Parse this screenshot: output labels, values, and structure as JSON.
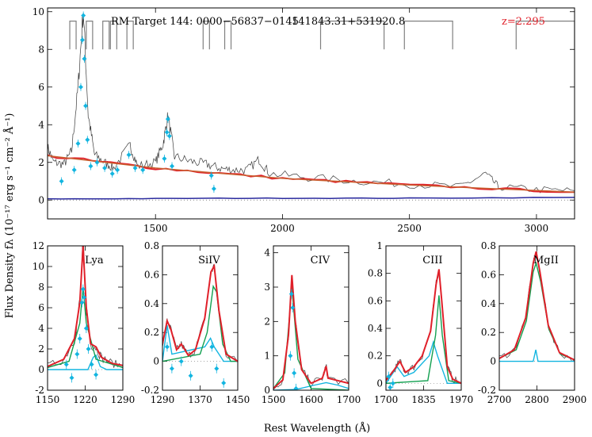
{
  "chart_data": {
    "type": "line",
    "ylabel": "Flux Density fλ (10⁻¹⁷ erg s⁻¹ cm⁻² Å⁻¹)",
    "xlabel": "Rest Wavelength (Å)",
    "colors": {
      "data": "#3a3a3a",
      "fit": "#e0202a",
      "continuum": "#c86030",
      "error": "#2a2a9e",
      "narrow": "#12b5e0",
      "broad": "#12a050",
      "points": "#12b5e0",
      "lines": "#808080"
    },
    "main": {
      "title_left": "RM Target 144: 0000−56837−0145",
      "title_mid": "141843.31+531920.8",
      "redshift": "z=2.295",
      "xlim": [
        1075,
        3150
      ],
      "ylim": [
        -1,
        10.2
      ],
      "xticks": [
        1500,
        2000,
        2500,
        3000
      ],
      "yticks": [
        0,
        2,
        4,
        6,
        8,
        10
      ],
      "line_markers": [
        1175,
        1240,
        1305,
        1335,
        1400,
        1700,
        1785
      ],
      "line_brackets": [
        [
          2150,
          2400
        ],
        [
          2480,
          2670
        ],
        [
          2920,
          3150
        ]
      ],
      "continuum": [
        [
          1075,
          2.35
        ],
        [
          1500,
          1.7
        ],
        [
          2000,
          1.15
        ],
        [
          2500,
          0.8
        ],
        [
          3150,
          0.42
        ]
      ],
      "error": [
        [
          1075,
          0.06
        ],
        [
          1500,
          0.08
        ],
        [
          2000,
          0.1
        ],
        [
          2500,
          0.1
        ],
        [
          3150,
          0.14
        ]
      ],
      "flux": [
        [
          1075,
          2.8
        ],
        [
          1100,
          2.0
        ],
        [
          1140,
          1.9
        ],
        [
          1170,
          2.6
        ],
        [
          1195,
          6.0
        ],
        [
          1216,
          10.1
        ],
        [
          1235,
          4.5
        ],
        [
          1260,
          2.4
        ],
        [
          1300,
          2.0
        ],
        [
          1335,
          1.7
        ],
        [
          1400,
          2.9
        ],
        [
          1430,
          1.8
        ],
        [
          1500,
          2.0
        ],
        [
          1530,
          3.0
        ],
        [
          1549,
          4.5
        ],
        [
          1575,
          2.3
        ],
        [
          1640,
          2.05
        ],
        [
          1700,
          1.9
        ],
        [
          1750,
          1.7
        ],
        [
          1800,
          1.6
        ],
        [
          1860,
          1.6
        ],
        [
          1908,
          2.15
        ],
        [
          1950,
          1.4
        ],
        [
          2100,
          1.2
        ],
        [
          2300,
          1.0
        ],
        [
          2500,
          0.85
        ],
        [
          2700,
          0.7
        ],
        [
          2800,
          1.4
        ],
        [
          2850,
          0.7
        ],
        [
          3000,
          0.55
        ],
        [
          3150,
          0.5
        ]
      ],
      "points": [
        [
          1130,
          1.0
        ],
        [
          1180,
          1.6
        ],
        [
          1195,
          3.0
        ],
        [
          1206,
          6.0
        ],
        [
          1212,
          8.5
        ],
        [
          1216,
          9.8
        ],
        [
          1220,
          7.5
        ],
        [
          1225,
          5.0
        ],
        [
          1232,
          3.2
        ],
        [
          1245,
          1.8
        ],
        [
          1270,
          2.0
        ],
        [
          1300,
          1.7
        ],
        [
          1330,
          1.4
        ],
        [
          1350,
          1.6
        ],
        [
          1395,
          2.4
        ],
        [
          1420,
          1.7
        ],
        [
          1450,
          1.6
        ],
        [
          1535,
          2.2
        ],
        [
          1545,
          3.6
        ],
        [
          1549,
          4.3
        ],
        [
          1555,
          3.4
        ],
        [
          1565,
          1.8
        ],
        [
          1720,
          1.3
        ],
        [
          1730,
          0.6
        ]
      ]
    },
    "subplots": [
      {
        "label": "Lya",
        "xlim": [
          1150,
          1290
        ],
        "ylim": [
          -2,
          12
        ],
        "xticks": [
          1150,
          1220,
          1290
        ],
        "yticks": [
          -2,
          0,
          2,
          4,
          6,
          8,
          10,
          12
        ],
        "total": [
          [
            1150,
            0.3
          ],
          [
            1180,
            1.0
          ],
          [
            1200,
            3.0
          ],
          [
            1210,
            6.5
          ],
          [
            1216,
            12.0
          ],
          [
            1222,
            6.0
          ],
          [
            1230,
            2.5
          ],
          [
            1240,
            2.2
          ],
          [
            1250,
            1.2
          ],
          [
            1270,
            0.6
          ],
          [
            1290,
            0.4
          ]
        ],
        "broad": [
          [
            1150,
            0.2
          ],
          [
            1190,
            0.8
          ],
          [
            1210,
            4.5
          ],
          [
            1216,
            8.0
          ],
          [
            1222,
            4.5
          ],
          [
            1240,
            1.0
          ],
          [
            1290,
            0.2
          ]
        ],
        "narrow": [
          [
            1150,
            0
          ],
          [
            1225,
            0
          ],
          [
            1235,
            1.2
          ],
          [
            1240,
            1.4
          ],
          [
            1248,
            0.3
          ],
          [
            1260,
            0
          ],
          [
            1290,
            0
          ]
        ],
        "points": [
          [
            1185,
            0.5
          ],
          [
            1195,
            -0.8
          ],
          [
            1205,
            1.5
          ],
          [
            1210,
            3.0
          ],
          [
            1214,
            6.5
          ],
          [
            1216,
            7.8
          ],
          [
            1218,
            7.0
          ],
          [
            1222,
            4.0
          ],
          [
            1226,
            2.0
          ],
          [
            1232,
            0.5
          ],
          [
            1240,
            -0.5
          ]
        ]
      },
      {
        "label": "SiIV",
        "xlim": [
          1290,
          1450
        ],
        "ylim": [
          -0.2,
          0.8
        ],
        "xticks": [
          1290,
          1370,
          1450
        ],
        "yticks": [
          -0.2,
          0.0,
          0.2,
          0.4,
          0.6,
          0.8
        ],
        "total": [
          [
            1290,
            0.12
          ],
          [
            1300,
            0.28
          ],
          [
            1308,
            0.22
          ],
          [
            1320,
            0.08
          ],
          [
            1330,
            0.12
          ],
          [
            1345,
            0.04
          ],
          [
            1360,
            0.08
          ],
          [
            1380,
            0.3
          ],
          [
            1393,
            0.62
          ],
          [
            1400,
            0.66
          ],
          [
            1410,
            0.35
          ],
          [
            1425,
            0.05
          ],
          [
            1450,
            0.0
          ]
        ],
        "broad": [
          [
            1290,
            0.0
          ],
          [
            1370,
            0.05
          ],
          [
            1385,
            0.2
          ],
          [
            1398,
            0.52
          ],
          [
            1405,
            0.48
          ],
          [
            1418,
            0.12
          ],
          [
            1435,
            0.0
          ],
          [
            1450,
            0.0
          ]
        ],
        "narrow": [
          [
            1290,
            0.0
          ],
          [
            1300,
            0.25
          ],
          [
            1310,
            0.05
          ],
          [
            1380,
            0.1
          ],
          [
            1392,
            0.16
          ],
          [
            1400,
            0.1
          ],
          [
            1420,
            0.0
          ],
          [
            1450,
            0.0
          ]
        ],
        "points": [
          [
            1300,
            0.1
          ],
          [
            1310,
            -0.05
          ],
          [
            1330,
            0.0
          ],
          [
            1350,
            -0.1
          ],
          [
            1395,
            0.1
          ],
          [
            1405,
            -0.05
          ],
          [
            1420,
            -0.15
          ]
        ]
      },
      {
        "label": "CIV",
        "xlim": [
          1500,
          1700
        ],
        "ylim": [
          0,
          4.2
        ],
        "xticks": [
          1500,
          1600,
          1700
        ],
        "yticks": [
          0,
          1,
          2,
          3,
          4
        ],
        "total": [
          [
            1500,
            0.05
          ],
          [
            1525,
            0.3
          ],
          [
            1540,
            1.6
          ],
          [
            1549,
            3.35
          ],
          [
            1558,
            2.0
          ],
          [
            1575,
            0.6
          ],
          [
            1600,
            0.2
          ],
          [
            1630,
            0.35
          ],
          [
            1640,
            0.7
          ],
          [
            1645,
            0.35
          ],
          [
            1700,
            0.2
          ]
        ],
        "broad": [
          [
            1500,
            0.05
          ],
          [
            1530,
            0.5
          ],
          [
            1549,
            3.0
          ],
          [
            1565,
            0.9
          ],
          [
            1600,
            0.05
          ],
          [
            1700,
            0.0
          ]
        ],
        "narrow": [
          [
            1500,
            0.0
          ],
          [
            1560,
            0.02
          ],
          [
            1610,
            0.15
          ],
          [
            1640,
            0.22
          ],
          [
            1670,
            0.15
          ],
          [
            1700,
            0.05
          ]
        ],
        "points": [
          [
            1545,
            1.0
          ],
          [
            1548,
            2.8
          ],
          [
            1551,
            2.4
          ],
          [
            1555,
            0.5
          ],
          [
            1560,
            0.05
          ]
        ]
      },
      {
        "label": "CIII",
        "xlim": [
          1700,
          1970
        ],
        "ylim": [
          -0.05,
          1.0
        ],
        "xticks": [
          1700,
          1835,
          1970
        ],
        "yticks": [
          0.0,
          0.2,
          0.4,
          0.6,
          0.8,
          1.0
        ],
        "total": [
          [
            1700,
            0.02
          ],
          [
            1730,
            0.1
          ],
          [
            1750,
            0.16
          ],
          [
            1770,
            0.08
          ],
          [
            1800,
            0.12
          ],
          [
            1830,
            0.2
          ],
          [
            1860,
            0.38
          ],
          [
            1880,
            0.72
          ],
          [
            1890,
            0.83
          ],
          [
            1900,
            0.6
          ],
          [
            1920,
            0.12
          ],
          [
            1940,
            0.03
          ],
          [
            1970,
            0.0
          ]
        ],
        "broad": [
          [
            1700,
            0.0
          ],
          [
            1850,
            0.02
          ],
          [
            1878,
            0.35
          ],
          [
            1890,
            0.64
          ],
          [
            1902,
            0.35
          ],
          [
            1925,
            0.02
          ],
          [
            1970,
            0.0
          ]
        ],
        "narrow": [
          [
            1700,
            0.0
          ],
          [
            1740,
            0.12
          ],
          [
            1765,
            0.05
          ],
          [
            1800,
            0.08
          ],
          [
            1855,
            0.2
          ],
          [
            1870,
            0.3
          ],
          [
            1885,
            0.2
          ],
          [
            1920,
            0.0
          ],
          [
            1970,
            0.0
          ]
        ],
        "points": [
          [
            1710,
            0.05
          ],
          [
            1715,
            -0.03
          ],
          [
            1725,
            0.0
          ]
        ]
      },
      {
        "label": "MgII",
        "xlim": [
          2700,
          2900
        ],
        "ylim": [
          -0.2,
          0.8
        ],
        "xticks": [
          2700,
          2800,
          2900
        ],
        "yticks": [
          -0.2,
          0.0,
          0.2,
          0.4,
          0.6,
          0.8
        ],
        "total": [
          [
            2700,
            0.02
          ],
          [
            2740,
            0.08
          ],
          [
            2770,
            0.3
          ],
          [
            2790,
            0.68
          ],
          [
            2798,
            0.76
          ],
          [
            2808,
            0.62
          ],
          [
            2830,
            0.25
          ],
          [
            2860,
            0.06
          ],
          [
            2900,
            0.01
          ]
        ],
        "broad": [
          [
            2700,
            0.02
          ],
          [
            2745,
            0.08
          ],
          [
            2772,
            0.28
          ],
          [
            2790,
            0.62
          ],
          [
            2798,
            0.68
          ],
          [
            2810,
            0.55
          ],
          [
            2832,
            0.22
          ],
          [
            2862,
            0.05
          ],
          [
            2900,
            0.01
          ]
        ],
        "narrow": [
          [
            2700,
            0.0
          ],
          [
            2790,
            0.0
          ],
          [
            2797,
            0.08
          ],
          [
            2803,
            0.0
          ],
          [
            2900,
            0.0
          ]
        ],
        "points": []
      }
    ]
  }
}
